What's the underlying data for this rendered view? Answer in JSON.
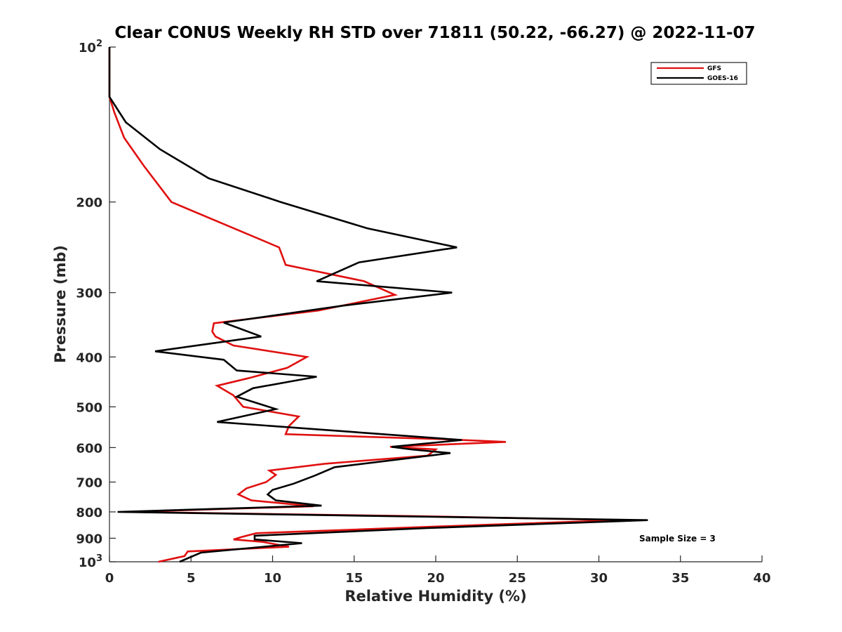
{
  "chart_data": {
    "type": "line",
    "title": "Clear CONUS Weekly RH STD over 71811 (50.22, -66.27) @ 2022-11-07",
    "xlabel": "Relative Humidity (%)",
    "ylabel": "Pressure (mb)",
    "xlim": [
      0,
      40
    ],
    "ylim": [
      100,
      1000
    ],
    "y_scale": "log",
    "y_reversed": true,
    "grid": false,
    "legend_position": "top-right",
    "x_ticks": [
      0,
      5,
      10,
      15,
      20,
      25,
      30,
      35,
      40
    ],
    "y_ticks": [
      {
        "value": 100,
        "base": "10",
        "exp": "2"
      },
      {
        "value": 200,
        "label": "200"
      },
      {
        "value": 300,
        "label": "300"
      },
      {
        "value": 400,
        "label": "400"
      },
      {
        "value": 500,
        "label": "500"
      },
      {
        "value": 600,
        "label": "600"
      },
      {
        "value": 700,
        "label": "700"
      },
      {
        "value": 800,
        "label": "800"
      },
      {
        "value": 900,
        "label": "900"
      },
      {
        "value": 1000,
        "base": "10",
        "exp": "3"
      }
    ],
    "annotation": "Sample Size = 3",
    "series": [
      {
        "name": "GFS",
        "color": "#e01010",
        "points": [
          [
            0.0,
            100
          ],
          [
            0.0,
            125
          ],
          [
            0.3,
            134
          ],
          [
            0.9,
            150
          ],
          [
            2.1,
            170
          ],
          [
            3.8,
            200
          ],
          [
            10.4,
            245
          ],
          [
            10.8,
            265
          ],
          [
            15.6,
            285
          ],
          [
            17.5,
            303
          ],
          [
            12.8,
            325
          ],
          [
            6.4,
            344
          ],
          [
            6.3,
            357
          ],
          [
            6.5,
            365
          ],
          [
            7.6,
            380
          ],
          [
            12.1,
            400
          ],
          [
            10.9,
            420
          ],
          [
            8.5,
            440
          ],
          [
            6.6,
            455
          ],
          [
            7.6,
            475
          ],
          [
            8.2,
            500
          ],
          [
            11.6,
            522
          ],
          [
            11.0,
            545
          ],
          [
            10.8,
            565
          ],
          [
            20.5,
            578
          ],
          [
            24.3,
            585
          ],
          [
            17.2,
            598
          ],
          [
            20.0,
            605
          ],
          [
            19.5,
            622
          ],
          [
            13.2,
            645
          ],
          [
            9.8,
            665
          ],
          [
            10.2,
            678
          ],
          [
            9.6,
            700
          ],
          [
            8.4,
            720
          ],
          [
            7.9,
            740
          ],
          [
            8.7,
            760
          ],
          [
            12.5,
            780
          ],
          [
            1.1,
            800
          ],
          [
            18.5,
            815
          ],
          [
            31.5,
            830
          ],
          [
            22.8,
            848
          ],
          [
            9.0,
            880
          ],
          [
            8.1,
            895
          ],
          [
            7.6,
            905
          ],
          [
            9.4,
            915
          ],
          [
            11.0,
            935
          ],
          [
            4.8,
            955
          ],
          [
            4.6,
            975
          ],
          [
            3.0,
            1000
          ]
        ]
      },
      {
        "name": "GOES-16",
        "color": "#000000",
        "points": [
          [
            0.0,
            100
          ],
          [
            0.0,
            125
          ],
          [
            1.0,
            140
          ],
          [
            3.1,
            158
          ],
          [
            6.1,
            180
          ],
          [
            10.5,
            200
          ],
          [
            15.8,
            225
          ],
          [
            21.3,
            245
          ],
          [
            15.3,
            262
          ],
          [
            12.7,
            285
          ],
          [
            21.0,
            300
          ],
          [
            14.3,
            318
          ],
          [
            7.0,
            343
          ],
          [
            9.3,
            365
          ],
          [
            2.8,
            390
          ],
          [
            7.0,
            405
          ],
          [
            7.8,
            425
          ],
          [
            12.7,
            437
          ],
          [
            8.8,
            460
          ],
          [
            7.8,
            478
          ],
          [
            10.2,
            505
          ],
          [
            6.6,
            535
          ],
          [
            21.6,
            580
          ],
          [
            17.3,
            598
          ],
          [
            18.5,
            605
          ],
          [
            20.9,
            615
          ],
          [
            13.8,
            655
          ],
          [
            12.6,
            680
          ],
          [
            11.3,
            705
          ],
          [
            10.0,
            725
          ],
          [
            9.7,
            740
          ],
          [
            10.2,
            760
          ],
          [
            13.0,
            778
          ],
          [
            0.5,
            800
          ],
          [
            33.0,
            830
          ],
          [
            19.5,
            860
          ],
          [
            8.9,
            890
          ],
          [
            8.9,
            905
          ],
          [
            11.8,
            920
          ],
          [
            5.6,
            960
          ],
          [
            4.3,
            1000
          ]
        ]
      }
    ]
  }
}
